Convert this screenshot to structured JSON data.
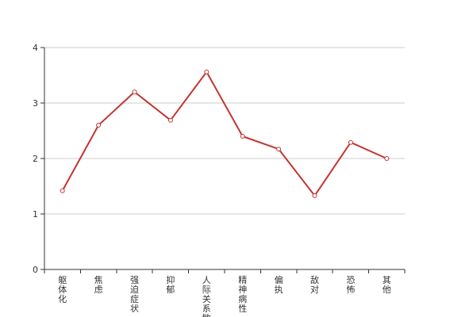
{
  "chart_data": {
    "type": "line",
    "categories": [
      "躯体化",
      "焦虑",
      "强迫症状",
      "抑郁",
      "人际关系敏感",
      "精神病性",
      "偏执",
      "敌对",
      "恐怖",
      "其他"
    ],
    "series": [
      {
        "values": [
          1.42,
          2.6,
          3.2,
          2.69,
          3.56,
          2.4,
          2.17,
          1.33,
          2.29,
          2.0
        ]
      }
    ],
    "ylim": [
      0,
      4
    ],
    "yticks": [
      0,
      1,
      2,
      3,
      4
    ],
    "grid": true,
    "legend": false,
    "colors": {
      "line": "#c23531",
      "grid": "#cccccc",
      "axis": "#333333",
      "marker_fill": "#ffffff"
    }
  }
}
